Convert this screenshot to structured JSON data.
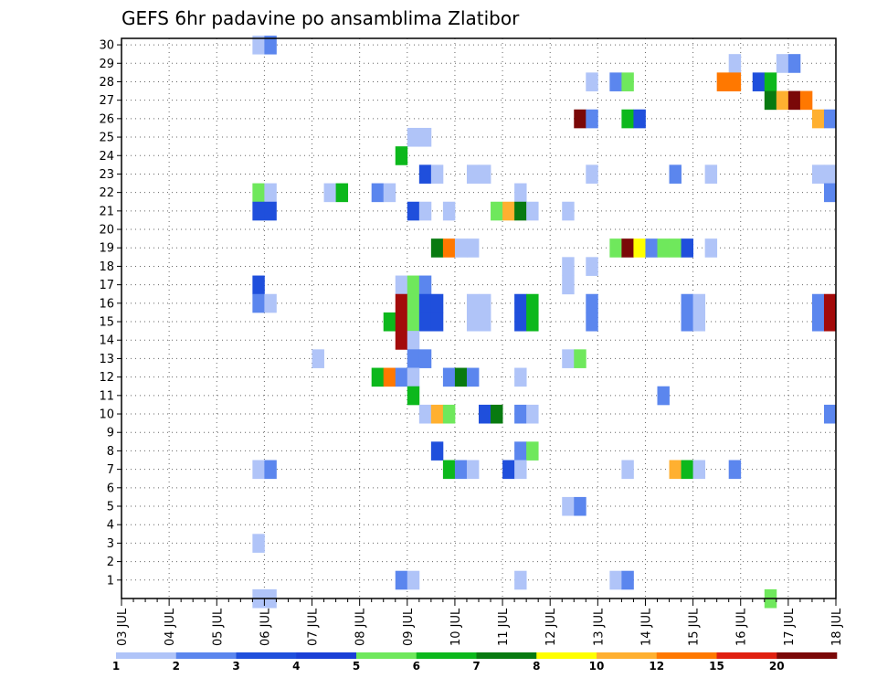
{
  "chart_data": {
    "type": "heatmap",
    "title": "GEFS 6hr padavine po ansamblima Zlatibor",
    "xlabel": "",
    "ylabel": "",
    "x_dates": [
      "03 JUL",
      "04 JUL",
      "05 JUL",
      "06 JUL",
      "07 JUL",
      "08 JUL",
      "09 JUL",
      "10 JUL",
      "11 JUL",
      "12 JUL",
      "13 JUL",
      "14 JUL",
      "15 JUL",
      "16 JUL",
      "17 JUL",
      "18 JUL"
    ],
    "x_unit": "6-hour step (4 per day)",
    "yticks": [
      1,
      2,
      3,
      4,
      5,
      6,
      7,
      8,
      9,
      10,
      11,
      12,
      13,
      14,
      15,
      16,
      17,
      18,
      19,
      20,
      21,
      22,
      23,
      24,
      25,
      26,
      27,
      28,
      29,
      30
    ],
    "ylim": [
      0,
      30
    ],
    "grid": true,
    "colorbar": {
      "labels": [
        "1",
        "2",
        "3",
        "4",
        "5",
        "6",
        "7",
        "8",
        "10",
        "12",
        "15",
        "20"
      ],
      "colors": [
        "#b0c4f8",
        "#5b86ee",
        "#1f4fdc",
        "#1a3fd6",
        "#6fe85c",
        "#0cb81c",
        "#087a10",
        "#ffff00",
        "#ffb030",
        "#ff7800",
        "#e02010",
        "#7a0808"
      ]
    },
    "cells": [
      {
        "step": 11,
        "member": 30,
        "level": 1
      },
      {
        "step": 12,
        "member": 30,
        "level": 2
      },
      {
        "step": 51,
        "member": 29,
        "level": 1
      },
      {
        "step": 55,
        "member": 29,
        "level": 1
      },
      {
        "step": 56,
        "member": 29,
        "level": 2
      },
      {
        "step": 39,
        "member": 28,
        "level": 1
      },
      {
        "step": 41,
        "member": 28,
        "level": 2
      },
      {
        "step": 42,
        "member": 28,
        "level": 5
      },
      {
        "step": 50,
        "member": 28,
        "level": 10
      },
      {
        "step": 51,
        "member": 28,
        "level": 10
      },
      {
        "step": 53,
        "member": 28,
        "level": 3
      },
      {
        "step": 54,
        "member": 28,
        "level": 6
      },
      {
        "step": 54,
        "member": 27,
        "level": 7
      },
      {
        "step": 55,
        "member": 27,
        "level": 9
      },
      {
        "step": 56,
        "member": 27,
        "level": 12
      },
      {
        "step": 57,
        "member": 27,
        "level": 10
      },
      {
        "step": 38,
        "member": 26,
        "level": 12
      },
      {
        "step": 39,
        "member": 26,
        "level": 2
      },
      {
        "step": 42,
        "member": 26,
        "level": 6
      },
      {
        "step": 43,
        "member": 26,
        "level": 3
      },
      {
        "step": 58,
        "member": 26,
        "level": 9
      },
      {
        "step": 59,
        "member": 26,
        "level": 2
      },
      {
        "step": 24,
        "member": 25,
        "level": 1
      },
      {
        "step": 25,
        "member": 25,
        "level": 1
      },
      {
        "step": 23,
        "member": 24,
        "level": 6
      },
      {
        "step": 25,
        "member": 23,
        "level": 3
      },
      {
        "step": 26,
        "member": 23,
        "level": 1
      },
      {
        "step": 29,
        "member": 23,
        "level": 1
      },
      {
        "step": 30,
        "member": 23,
        "level": 1
      },
      {
        "step": 39,
        "member": 23,
        "level": 1
      },
      {
        "step": 46,
        "member": 23,
        "level": 2
      },
      {
        "step": 49,
        "member": 23,
        "level": 1
      },
      {
        "step": 58,
        "member": 23,
        "level": 1
      },
      {
        "step": 59,
        "member": 23,
        "level": 1
      },
      {
        "step": 11,
        "member": 22,
        "level": 5
      },
      {
        "step": 12,
        "member": 22,
        "level": 1
      },
      {
        "step": 17,
        "member": 22,
        "level": 1
      },
      {
        "step": 18,
        "member": 22,
        "level": 6
      },
      {
        "step": 21,
        "member": 22,
        "level": 2
      },
      {
        "step": 22,
        "member": 22,
        "level": 1
      },
      {
        "step": 33,
        "member": 22,
        "level": 1
      },
      {
        "step": 59,
        "member": 22,
        "level": 2
      },
      {
        "step": 11,
        "member": 21,
        "level": 3
      },
      {
        "step": 12,
        "member": 21,
        "level": 3
      },
      {
        "step": 24,
        "member": 21,
        "level": 3
      },
      {
        "step": 25,
        "member": 21,
        "level": 1
      },
      {
        "step": 27,
        "member": 21,
        "level": 1
      },
      {
        "step": 31,
        "member": 21,
        "level": 5
      },
      {
        "step": 32,
        "member": 21,
        "level": 9
      },
      {
        "step": 33,
        "member": 21,
        "level": 7
      },
      {
        "step": 34,
        "member": 21,
        "level": 1
      },
      {
        "step": 37,
        "member": 21,
        "level": 1
      },
      {
        "step": 26,
        "member": 19,
        "level": 7
      },
      {
        "step": 27,
        "member": 19,
        "level": 10
      },
      {
        "step": 28,
        "member": 19,
        "level": 1
      },
      {
        "step": 29,
        "member": 19,
        "level": 1
      },
      {
        "step": 41,
        "member": 19,
        "level": 5
      },
      {
        "step": 42,
        "member": 19,
        "level": 12
      },
      {
        "step": 43,
        "member": 19,
        "level": 8
      },
      {
        "step": 44,
        "member": 19,
        "level": 2
      },
      {
        "step": 45,
        "member": 19,
        "level": 5
      },
      {
        "step": 46,
        "member": 19,
        "level": 5
      },
      {
        "step": 47,
        "member": 19,
        "level": 3
      },
      {
        "step": 49,
        "member": 19,
        "level": 1
      },
      {
        "step": 37,
        "member": 18,
        "level": 1
      },
      {
        "step": 39,
        "member": 18,
        "level": 1
      },
      {
        "step": 11,
        "member": 17,
        "level": 3
      },
      {
        "step": 23,
        "member": 17,
        "level": 1
      },
      {
        "step": 24,
        "member": 17,
        "level": 5
      },
      {
        "step": 25,
        "member": 17,
        "level": 2
      },
      {
        "step": 37,
        "member": 17,
        "level": 1
      },
      {
        "step": 11,
        "member": 16,
        "level": 2
      },
      {
        "step": 12,
        "member": 16,
        "level": 1
      },
      {
        "step": 23,
        "member": 16,
        "level": 13
      },
      {
        "step": 24,
        "member": 16,
        "level": 5
      },
      {
        "step": 25,
        "member": 16,
        "level": 3
      },
      {
        "step": 26,
        "member": 16,
        "level": 3
      },
      {
        "step": 29,
        "member": 16,
        "level": 1
      },
      {
        "step": 30,
        "member": 16,
        "level": 1
      },
      {
        "step": 33,
        "member": 16,
        "level": 3
      },
      {
        "step": 34,
        "member": 16,
        "level": 6
      },
      {
        "step": 39,
        "member": 16,
        "level": 2
      },
      {
        "step": 47,
        "member": 16,
        "level": 2
      },
      {
        "step": 48,
        "member": 16,
        "level": 1
      },
      {
        "step": 58,
        "member": 16,
        "level": 2
      },
      {
        "step": 59,
        "member": 16,
        "level": 13
      },
      {
        "step": 22,
        "member": 15,
        "level": 6
      },
      {
        "step": 23,
        "member": 15,
        "level": 13
      },
      {
        "step": 24,
        "member": 15,
        "level": 5
      },
      {
        "step": 25,
        "member": 15,
        "level": 3
      },
      {
        "step": 26,
        "member": 15,
        "level": 3
      },
      {
        "step": 29,
        "member": 15,
        "level": 1
      },
      {
        "step": 30,
        "member": 15,
        "level": 1
      },
      {
        "step": 33,
        "member": 15,
        "level": 3
      },
      {
        "step": 34,
        "member": 15,
        "level": 6
      },
      {
        "step": 39,
        "member": 15,
        "level": 2
      },
      {
        "step": 47,
        "member": 15,
        "level": 2
      },
      {
        "step": 48,
        "member": 15,
        "level": 1
      },
      {
        "step": 58,
        "member": 15,
        "level": 2
      },
      {
        "step": 59,
        "member": 15,
        "level": 13
      },
      {
        "step": 23,
        "member": 14,
        "level": 13
      },
      {
        "step": 24,
        "member": 14,
        "level": 1
      },
      {
        "step": 16,
        "member": 13,
        "level": 1
      },
      {
        "step": 24,
        "member": 13,
        "level": 2
      },
      {
        "step": 25,
        "member": 13,
        "level": 2
      },
      {
        "step": 37,
        "member": 13,
        "level": 1
      },
      {
        "step": 38,
        "member": 13,
        "level": 5
      },
      {
        "step": 21,
        "member": 12,
        "level": 6
      },
      {
        "step": 22,
        "member": 12,
        "level": 10
      },
      {
        "step": 23,
        "member": 12,
        "level": 2
      },
      {
        "step": 24,
        "member": 12,
        "level": 1
      },
      {
        "step": 27,
        "member": 12,
        "level": 2
      },
      {
        "step": 28,
        "member": 12,
        "level": 7
      },
      {
        "step": 29,
        "member": 12,
        "level": 2
      },
      {
        "step": 33,
        "member": 12,
        "level": 1
      },
      {
        "step": 24,
        "member": 11,
        "level": 6
      },
      {
        "step": 45,
        "member": 11,
        "level": 2
      },
      {
        "step": 25,
        "member": 10,
        "level": 1
      },
      {
        "step": 26,
        "member": 10,
        "level": 9
      },
      {
        "step": 27,
        "member": 10,
        "level": 5
      },
      {
        "step": 30,
        "member": 10,
        "level": 3
      },
      {
        "step": 31,
        "member": 10,
        "level": 7
      },
      {
        "step": 33,
        "member": 10,
        "level": 2
      },
      {
        "step": 34,
        "member": 10,
        "level": 1
      },
      {
        "step": 59,
        "member": 10,
        "level": 2
      },
      {
        "step": 26,
        "member": 8,
        "level": 3
      },
      {
        "step": 33,
        "member": 8,
        "level": 2
      },
      {
        "step": 34,
        "member": 8,
        "level": 5
      },
      {
        "step": 11,
        "member": 7,
        "level": 1
      },
      {
        "step": 12,
        "member": 7,
        "level": 2
      },
      {
        "step": 27,
        "member": 7,
        "level": 6
      },
      {
        "step": 28,
        "member": 7,
        "level": 2
      },
      {
        "step": 29,
        "member": 7,
        "level": 1
      },
      {
        "step": 32,
        "member": 7,
        "level": 3
      },
      {
        "step": 33,
        "member": 7,
        "level": 1
      },
      {
        "step": 42,
        "member": 7,
        "level": 1
      },
      {
        "step": 46,
        "member": 7,
        "level": 9
      },
      {
        "step": 47,
        "member": 7,
        "level": 6
      },
      {
        "step": 48,
        "member": 7,
        "level": 1
      },
      {
        "step": 51,
        "member": 7,
        "level": 2
      },
      {
        "step": 37,
        "member": 5,
        "level": 1
      },
      {
        "step": 38,
        "member": 5,
        "level": 2
      },
      {
        "step": 11,
        "member": 3,
        "level": 1
      },
      {
        "step": 23,
        "member": 1,
        "level": 2
      },
      {
        "step": 24,
        "member": 1,
        "level": 1
      },
      {
        "step": 33,
        "member": 1,
        "level": 1
      },
      {
        "step": 41,
        "member": 1,
        "level": 1
      },
      {
        "step": 42,
        "member": 1,
        "level": 2
      },
      {
        "step": 11,
        "member": 0,
        "level": 1
      },
      {
        "step": 12,
        "member": 0,
        "level": 1
      },
      {
        "step": 54,
        "member": 0,
        "level": 5
      }
    ]
  }
}
